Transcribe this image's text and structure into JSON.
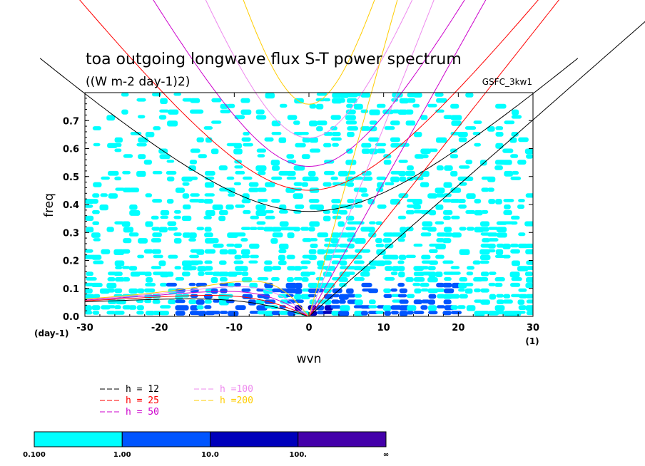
{
  "chart_data": {
    "type": "heatmap",
    "title": "toa outgoing longwave flux S-T power spectrum",
    "subtitle": "((W m-2 day-1)2)",
    "model_tag": "GSFC_3kw1",
    "xlabel": "wvn",
    "ylabel": "freq",
    "x_unit": "(1)",
    "y_unit": "(day-1)",
    "xlim": [
      -30,
      30
    ],
    "ylim": [
      0.0,
      0.8
    ],
    "x_ticks": [
      -30,
      -20,
      -10,
      0,
      10,
      20,
      30
    ],
    "y_ticks": [
      0.0,
      0.1,
      0.2,
      0.3,
      0.4,
      0.5,
      0.6,
      0.7
    ],
    "contour_levels": [
      "0.100",
      "1.00",
      "10.0",
      "100.",
      "∞"
    ],
    "level_colors": [
      "#00ffff",
      "#0055ff",
      "#0000bb",
      "#4400aa"
    ],
    "dispersion_curves": [
      {
        "label": "h = 12",
        "color": "#000000"
      },
      {
        "label": "h = 25",
        "color": "#ff0000"
      },
      {
        "label": "h = 50",
        "color": "#cc00cc"
      },
      {
        "label": "h =100",
        "color": "#ee88ee"
      },
      {
        "label": "h =200",
        "color": "#ffcc00"
      }
    ]
  }
}
